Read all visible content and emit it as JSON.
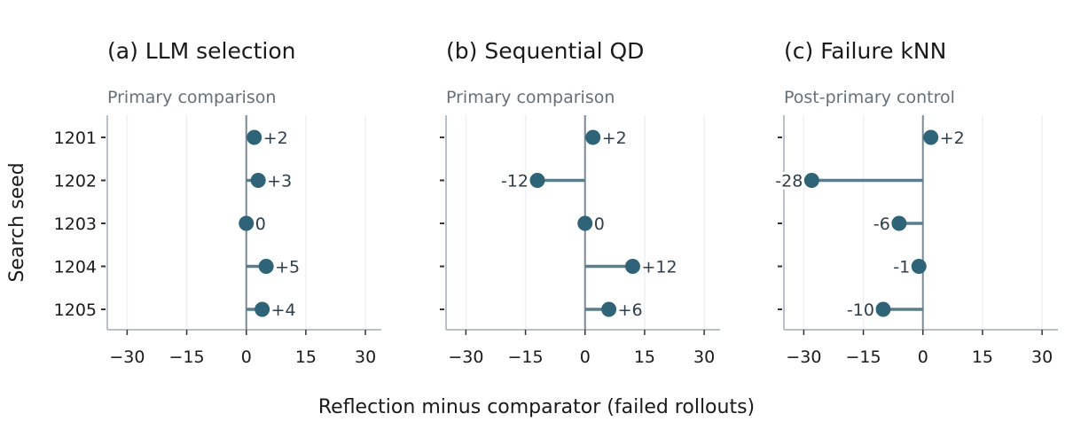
{
  "figure": {
    "xlabel": "Reflection minus comparator (failed rollouts)",
    "ylabel": "Search seed"
  },
  "colors": {
    "point": "#2f6478",
    "stem": "#587e8c",
    "zero_line": "#7a8b97",
    "axis": "#b9c0c7",
    "grid": "#eef0f2",
    "text": "#1a1a1a",
    "subtitle": "#66707a",
    "label": "#2f3e4a"
  },
  "chart_data": [
    {
      "type": "dot",
      "title": "(a) LLM selection",
      "subtitle": "Primary comparison",
      "categories": [
        "1201",
        "1202",
        "1203",
        "1204",
        "1205"
      ],
      "values": [
        2,
        3,
        0,
        5,
        4
      ],
      "labels": [
        "+2",
        "+3",
        "0",
        "+5",
        "+4"
      ],
      "xlim": [
        -35,
        34
      ],
      "xticks": [
        -30,
        -15,
        0,
        15,
        30
      ],
      "xtick_labels": [
        "−30",
        "−15",
        "0",
        "15",
        "30"
      ],
      "grid": true
    },
    {
      "type": "dot",
      "title": "(b) Sequential QD",
      "subtitle": "Primary comparison",
      "categories": [
        "1201",
        "1202",
        "1203",
        "1204",
        "1205"
      ],
      "values": [
        2,
        -12,
        0,
        12,
        6
      ],
      "labels": [
        "+2",
        "-12",
        "0",
        "+12",
        "+6"
      ],
      "xlim": [
        -35,
        34
      ],
      "xticks": [
        -30,
        -15,
        0,
        15,
        30
      ],
      "xtick_labels": [
        "−30",
        "−15",
        "0",
        "15",
        "30"
      ],
      "grid": true
    },
    {
      "type": "dot",
      "title": "(c) Failure kNN",
      "subtitle": "Post-primary control",
      "categories": [
        "1201",
        "1202",
        "1203",
        "1204",
        "1205"
      ],
      "values": [
        2,
        -28,
        -6,
        -1,
        -10
      ],
      "labels": [
        "+2",
        "-28",
        "-6",
        "-1",
        "-10"
      ],
      "xlim": [
        -35,
        34
      ],
      "xticks": [
        -30,
        -15,
        0,
        15,
        30
      ],
      "xtick_labels": [
        "−30",
        "−15",
        "0",
        "15",
        "30"
      ],
      "grid": true
    }
  ]
}
